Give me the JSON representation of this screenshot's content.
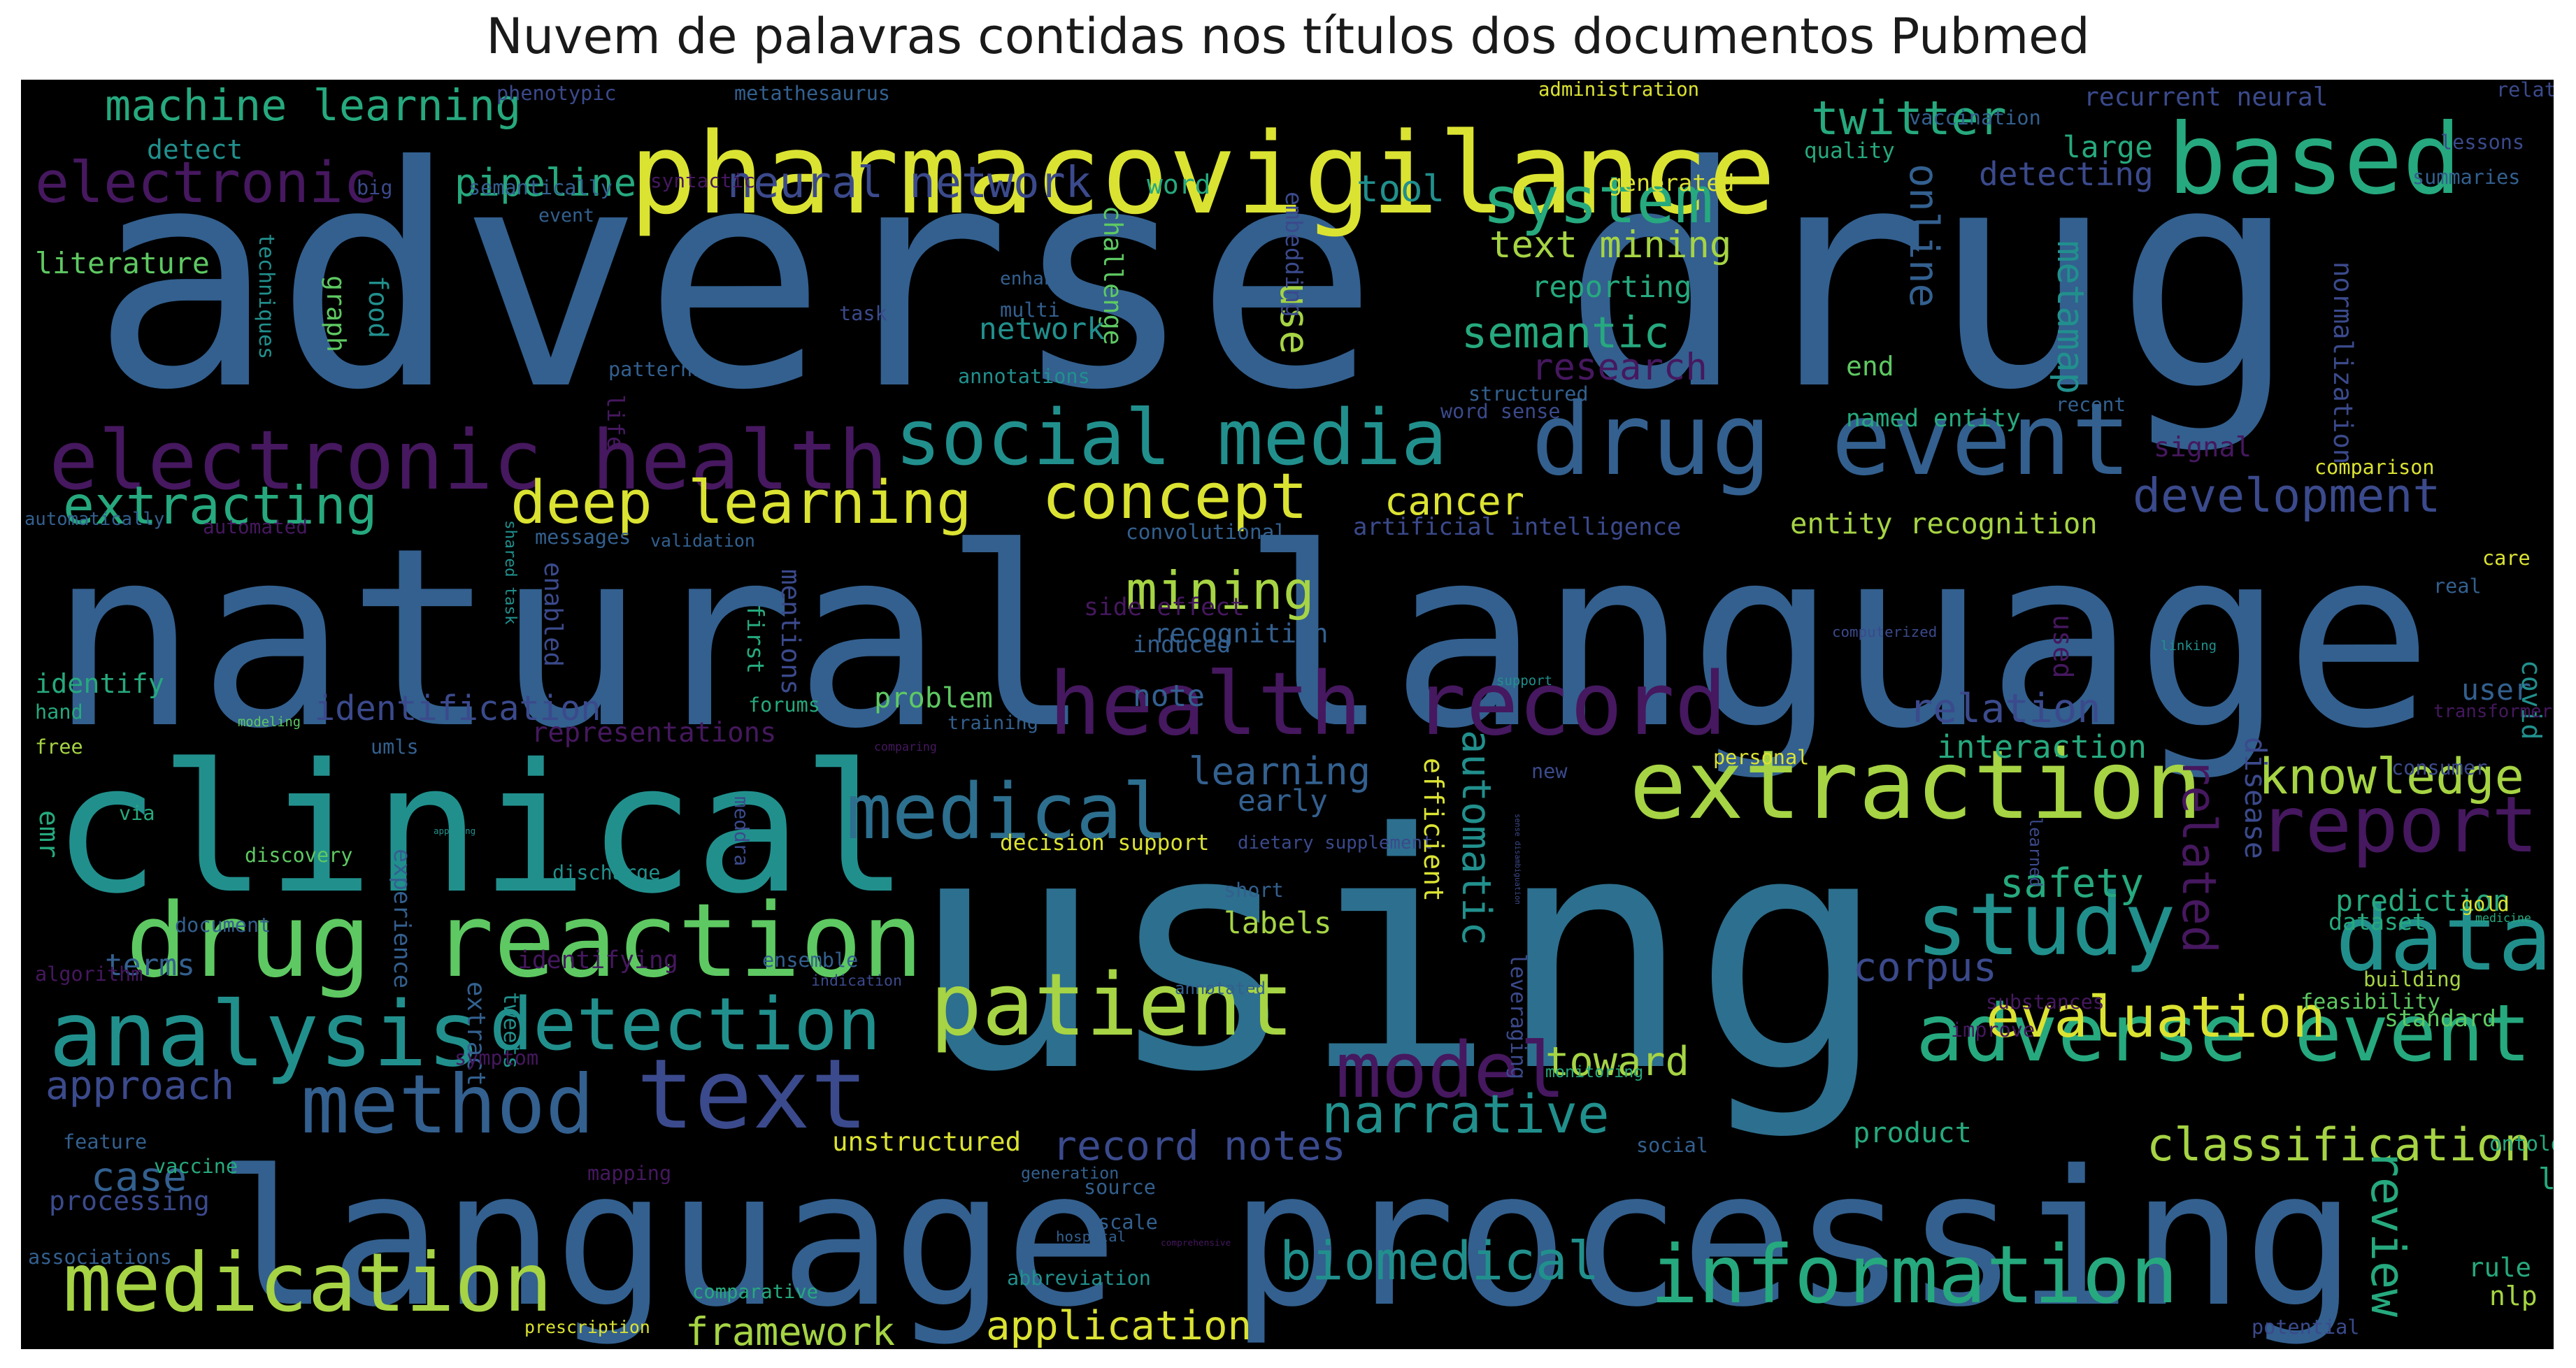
{
  "title": "Nuvem de palavras contidas nos títulos dos documentos Pubmed",
  "palette": {
    "purple": "#46185f",
    "indigo": "#3b4a8c",
    "steel": "#33608f",
    "blue": "#2d6f8e",
    "teal": "#21908d",
    "green": "#26a97e",
    "lime": "#5ec962",
    "yellowgreen": "#a6d444",
    "yellow": "#dbe332"
  },
  "words": [
    {
      "text": "adverse drug",
      "c": "steel"
    },
    {
      "text": "natural language",
      "c": "steel"
    },
    {
      "text": "using",
      "c": "blue"
    },
    {
      "text": "language processing",
      "c": "steel"
    },
    {
      "text": "clinical",
      "c": "teal"
    },
    {
      "text": "pharmacovigilance",
      "c": "yellow"
    },
    {
      "text": "electronic health",
      "c": "purple"
    },
    {
      "text": "health record",
      "c": "purple"
    },
    {
      "text": "drug event",
      "c": "steel"
    },
    {
      "text": "drug reaction",
      "c": "lime"
    },
    {
      "text": "extraction",
      "c": "yellowgreen"
    },
    {
      "text": "social media",
      "c": "teal"
    },
    {
      "text": "patient",
      "c": "yellowgreen"
    },
    {
      "text": "information",
      "c": "green"
    },
    {
      "text": "adverse event",
      "c": "green"
    },
    {
      "text": "analysis",
      "c": "teal"
    },
    {
      "text": "text",
      "c": "indigo"
    },
    {
      "text": "medication",
      "c": "yellowgreen"
    },
    {
      "text": "based",
      "c": "green"
    },
    {
      "text": "data",
      "c": "teal"
    },
    {
      "text": "detection",
      "c": "teal"
    },
    {
      "text": "medical",
      "c": "blue"
    },
    {
      "text": "method",
      "c": "steel"
    },
    {
      "text": "report",
      "c": "purple"
    },
    {
      "text": "study",
      "c": "teal"
    },
    {
      "text": "deep learning",
      "c": "yellow"
    },
    {
      "text": "model",
      "c": "purple"
    },
    {
      "text": "electronic",
      "c": "purple"
    },
    {
      "text": "narrative",
      "c": "teal"
    },
    {
      "text": "biomedical",
      "c": "teal"
    },
    {
      "text": "system",
      "c": "green"
    },
    {
      "text": "concept",
      "c": "yellow"
    },
    {
      "text": "classification",
      "c": "yellowgreen"
    },
    {
      "text": "evaluation",
      "c": "yellow"
    },
    {
      "text": "machine learning",
      "c": "green"
    },
    {
      "text": "extracting",
      "c": "green"
    },
    {
      "text": "mining",
      "c": "yellowgreen"
    },
    {
      "text": "knowledge",
      "c": "yellowgreen"
    },
    {
      "text": "twitter",
      "c": "green"
    },
    {
      "text": "semantic",
      "c": "green"
    },
    {
      "text": "identification",
      "c": "indigo"
    },
    {
      "text": "development",
      "c": "indigo"
    },
    {
      "text": "neural network",
      "c": "indigo"
    },
    {
      "text": "related",
      "c": "purple"
    },
    {
      "text": "corpus",
      "c": "indigo"
    },
    {
      "text": "framework",
      "c": "yellowgreen"
    },
    {
      "text": "application",
      "c": "yellow"
    },
    {
      "text": "safety",
      "c": "green"
    },
    {
      "text": "review",
      "c": "green"
    },
    {
      "text": "pipeline",
      "c": "green"
    },
    {
      "text": "relation",
      "c": "indigo"
    },
    {
      "text": "online",
      "c": "steel"
    },
    {
      "text": "text mining",
      "c": "yellowgreen"
    },
    {
      "text": "record notes",
      "c": "indigo"
    },
    {
      "text": "approach",
      "c": "indigo"
    },
    {
      "text": "case",
      "c": "steel"
    },
    {
      "text": "automatic",
      "c": "teal"
    },
    {
      "text": "research",
      "c": "purple"
    },
    {
      "text": "cancer",
      "c": "yellow"
    },
    {
      "text": "learning",
      "c": "steel"
    },
    {
      "text": "detecting",
      "c": "indigo"
    },
    {
      "text": "tool",
      "c": "teal"
    },
    {
      "text": "metamap",
      "c": "teal"
    },
    {
      "text": "toward",
      "c": "yellowgreen"
    },
    {
      "text": "use",
      "c": "yellowgreen"
    },
    {
      "text": "disease",
      "c": "indigo"
    },
    {
      "text": "processing",
      "c": "indigo"
    },
    {
      "text": "interaction",
      "c": "green"
    },
    {
      "text": "recurrent neural",
      "c": "indigo"
    },
    {
      "text": "entity recognition",
      "c": "yellowgreen"
    },
    {
      "text": "prediction",
      "c": "green"
    },
    {
      "text": "literature",
      "c": "lime"
    },
    {
      "text": "identify",
      "c": "green"
    },
    {
      "text": "problem",
      "c": "lime"
    },
    {
      "text": "unstructured",
      "c": "yellow"
    },
    {
      "text": "representations",
      "c": "purple"
    },
    {
      "text": "recognition",
      "c": "steel"
    },
    {
      "text": "named entity",
      "c": "green"
    },
    {
      "text": "standard",
      "c": "lime"
    },
    {
      "text": "large",
      "c": "green"
    },
    {
      "text": "signal",
      "c": "purple"
    },
    {
      "text": "reporting",
      "c": "green"
    },
    {
      "text": "normalization",
      "c": "indigo"
    },
    {
      "text": "challenge",
      "c": "lime"
    },
    {
      "text": "techniques",
      "c": "teal"
    },
    {
      "text": "user",
      "c": "steel"
    },
    {
      "text": "product",
      "c": "green"
    },
    {
      "text": "artificial intelligence",
      "c": "indigo"
    },
    {
      "text": "network",
      "c": "teal"
    },
    {
      "text": "early",
      "c": "steel"
    },
    {
      "text": "labels",
      "c": "yellowgreen"
    },
    {
      "text": "labeling",
      "c": "green"
    },
    {
      "text": "ontology",
      "c": "green"
    },
    {
      "text": "terms",
      "c": "steel"
    },
    {
      "text": "note",
      "c": "steel"
    },
    {
      "text": "mentions",
      "c": "indigo"
    },
    {
      "text": "word",
      "c": "green"
    },
    {
      "text": "detect",
      "c": "teal"
    },
    {
      "text": "end",
      "c": "lime"
    },
    {
      "text": "building",
      "c": "yellowgreen"
    },
    {
      "text": "dataset",
      "c": "green"
    },
    {
      "text": "feasibility",
      "c": "lime"
    },
    {
      "text": "side effect",
      "c": "purple"
    },
    {
      "text": "induced",
      "c": "steel"
    },
    {
      "text": "convolutional",
      "c": "steel"
    },
    {
      "text": "decision support",
      "c": "yellow"
    },
    {
      "text": "dietary supplement",
      "c": "indigo"
    },
    {
      "text": "shared task",
      "c": "teal"
    },
    {
      "text": "experience",
      "c": "steel"
    },
    {
      "text": "tweets",
      "c": "teal"
    },
    {
      "text": "identifying",
      "c": "purple"
    },
    {
      "text": "covid",
      "c": "teal"
    },
    {
      "text": "nlp",
      "c": "yellowgreen"
    },
    {
      "text": "rule",
      "c": "green"
    },
    {
      "text": "generated",
      "c": "yellow"
    },
    {
      "text": "quality",
      "c": "green"
    },
    {
      "text": "administration",
      "c": "yellow"
    },
    {
      "text": "relationship",
      "c": "indigo"
    },
    {
      "text": "lessons",
      "c": "indigo"
    },
    {
      "text": "summaries",
      "c": "steel"
    },
    {
      "text": "vaccination",
      "c": "steel"
    },
    {
      "text": "phenotypic",
      "c": "indigo"
    },
    {
      "text": "metathesaurus",
      "c": "steel"
    },
    {
      "text": "semantically",
      "c": "steel"
    },
    {
      "text": "syntactic",
      "c": "purple"
    },
    {
      "text": "big",
      "c": "indigo"
    },
    {
      "text": "event",
      "c": "steel"
    },
    {
      "text": "graph",
      "c": "lime"
    },
    {
      "text": "food",
      "c": "teal"
    },
    {
      "text": "enhance",
      "c": "steel"
    },
    {
      "text": "multi",
      "c": "steel"
    },
    {
      "text": "task",
      "c": "indigo"
    },
    {
      "text": "embedding",
      "c": "indigo"
    },
    {
      "text": "patterns",
      "c": "steel"
    },
    {
      "text": "annotations",
      "c": "teal"
    },
    {
      "text": "life",
      "c": "purple"
    },
    {
      "text": "word sense",
      "c": "indigo"
    },
    {
      "text": "structured",
      "c": "steel"
    },
    {
      "text": "recent",
      "c": "steel"
    },
    {
      "text": "comparison",
      "c": "yellow"
    },
    {
      "text": "automatically",
      "c": "steel"
    },
    {
      "text": "automated",
      "c": "purple"
    },
    {
      "text": "messages",
      "c": "steel"
    },
    {
      "text": "validation",
      "c": "steel"
    },
    {
      "text": "enabled",
      "c": "indigo"
    },
    {
      "text": "first",
      "c": "green"
    },
    {
      "text": "meddra",
      "c": "indigo"
    },
    {
      "text": "learned",
      "c": "indigo"
    },
    {
      "text": "computerized",
      "c": "indigo"
    },
    {
      "text": "used",
      "c": "purple"
    },
    {
      "text": "linking",
      "c": "teal"
    },
    {
      "text": "care",
      "c": "yellow"
    },
    {
      "text": "real",
      "c": "steel"
    },
    {
      "text": "support",
      "c": "teal"
    },
    {
      "text": "forums",
      "c": "green"
    },
    {
      "text": "training",
      "c": "steel"
    },
    {
      "text": "hand",
      "c": "green"
    },
    {
      "text": "modeling",
      "c": "lime"
    },
    {
      "text": "free",
      "c": "yellowgreen"
    },
    {
      "text": "umls",
      "c": "steel"
    },
    {
      "text": "comparing",
      "c": "purple"
    },
    {
      "text": "personal",
      "c": "yellow"
    },
    {
      "text": "transformer",
      "c": "purple"
    },
    {
      "text": "consumer",
      "c": "indigo"
    },
    {
      "text": "emr",
      "c": "green"
    },
    {
      "text": "via",
      "c": "green"
    },
    {
      "text": "applying",
      "c": "teal"
    },
    {
      "text": "new",
      "c": "indigo"
    },
    {
      "text": "sense disambiguation",
      "c": "indigo"
    },
    {
      "text": "efficient",
      "c": "yellow"
    },
    {
      "text": "leveraging",
      "c": "indigo"
    },
    {
      "text": "discovery",
      "c": "lime"
    },
    {
      "text": "discharge",
      "c": "teal"
    },
    {
      "text": "short",
      "c": "steel"
    },
    {
      "text": "gold",
      "c": "yellow"
    },
    {
      "text": "medicine",
      "c": "green"
    },
    {
      "text": "document",
      "c": "steel"
    },
    {
      "text": "algorithm",
      "c": "purple"
    },
    {
      "text": "ensemble",
      "c": "steel"
    },
    {
      "text": "indication",
      "c": "indigo"
    },
    {
      "text": "extract",
      "c": "steel"
    },
    {
      "text": "annotated",
      "c": "steel"
    },
    {
      "text": "substances",
      "c": "purple"
    },
    {
      "text": "improve",
      "c": "purple"
    },
    {
      "text": "symptom",
      "c": "purple"
    },
    {
      "text": "monitoring",
      "c": "green"
    },
    {
      "text": "feature",
      "c": "steel"
    },
    {
      "text": "vaccine",
      "c": "green"
    },
    {
      "text": "mapping",
      "c": "purple"
    },
    {
      "text": "social",
      "c": "steel"
    },
    {
      "text": "generation",
      "c": "steel"
    },
    {
      "text": "source",
      "c": "steel"
    },
    {
      "text": "scale",
      "c": "steel"
    },
    {
      "text": "hospital",
      "c": "steel"
    },
    {
      "text": "comprehensive",
      "c": "purple"
    },
    {
      "text": "abbreviation",
      "c": "teal"
    },
    {
      "text": "associations",
      "c": "steel"
    },
    {
      "text": "comparative",
      "c": "green"
    },
    {
      "text": "prescription",
      "c": "yellow"
    },
    {
      "text": "potential",
      "c": "indigo"
    }
  ]
}
